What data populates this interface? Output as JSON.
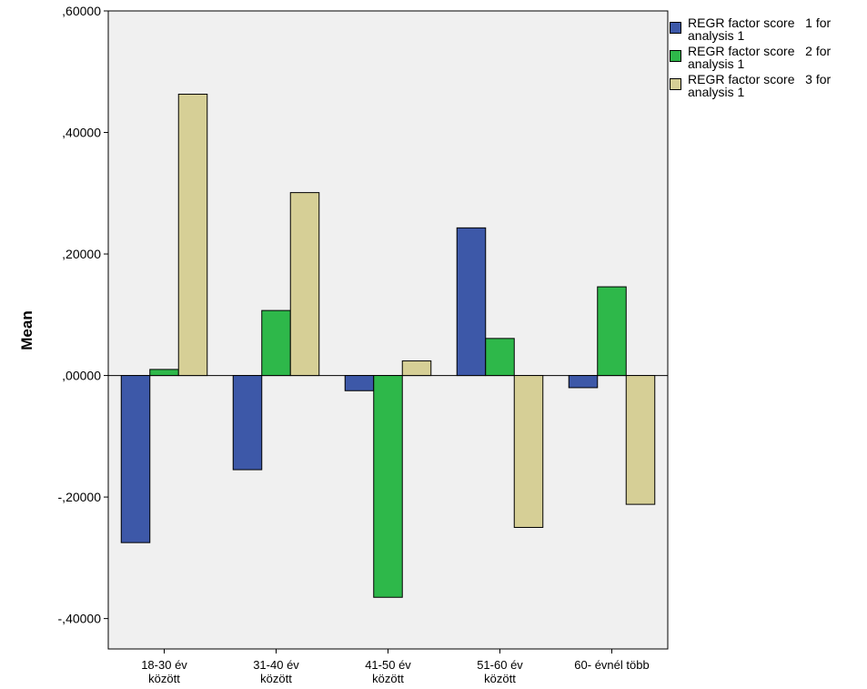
{
  "chart_data": {
    "type": "bar",
    "title": "",
    "xlabel": "",
    "ylabel": "Mean",
    "ylim": [
      -0.45,
      0.6
    ],
    "yticks": [
      -0.4,
      -0.2,
      0.0,
      0.2,
      0.4,
      0.6
    ],
    "ytick_labels": [
      "-,40000",
      "-,20000",
      ",00000",
      ",20000",
      ",40000",
      ",60000"
    ],
    "categories": [
      [
        "18-30 év",
        "között"
      ],
      [
        "31-40 év",
        "között"
      ],
      [
        "41-50 év",
        "között"
      ],
      [
        "51-60 év",
        "között"
      ],
      [
        "60- évnél több"
      ]
    ],
    "series": [
      {
        "name": "REGR factor score 1 for analysis 1",
        "label_lines": [
          "REGR factor score   1 for",
          "analysis 1"
        ],
        "color": "#3d58a8",
        "values": [
          -0.275,
          -0.155,
          -0.025,
          0.243,
          -0.02
        ]
      },
      {
        "name": "REGR factor score 2 for analysis 1",
        "label_lines": [
          "REGR factor score   2 for",
          "analysis 1"
        ],
        "color": "#2eb84a",
        "values": [
          0.01,
          0.107,
          -0.365,
          0.061,
          0.146
        ]
      },
      {
        "name": "REGR factor score 3 for analysis 1",
        "label_lines": [
          "REGR factor score   3 for",
          "analysis 1"
        ],
        "color": "#d6cf96",
        "values": [
          0.463,
          0.301,
          0.024,
          -0.25,
          -0.212
        ]
      }
    ],
    "grid": false,
    "legend_position": "right",
    "plot_background": "#f0f0f0"
  }
}
